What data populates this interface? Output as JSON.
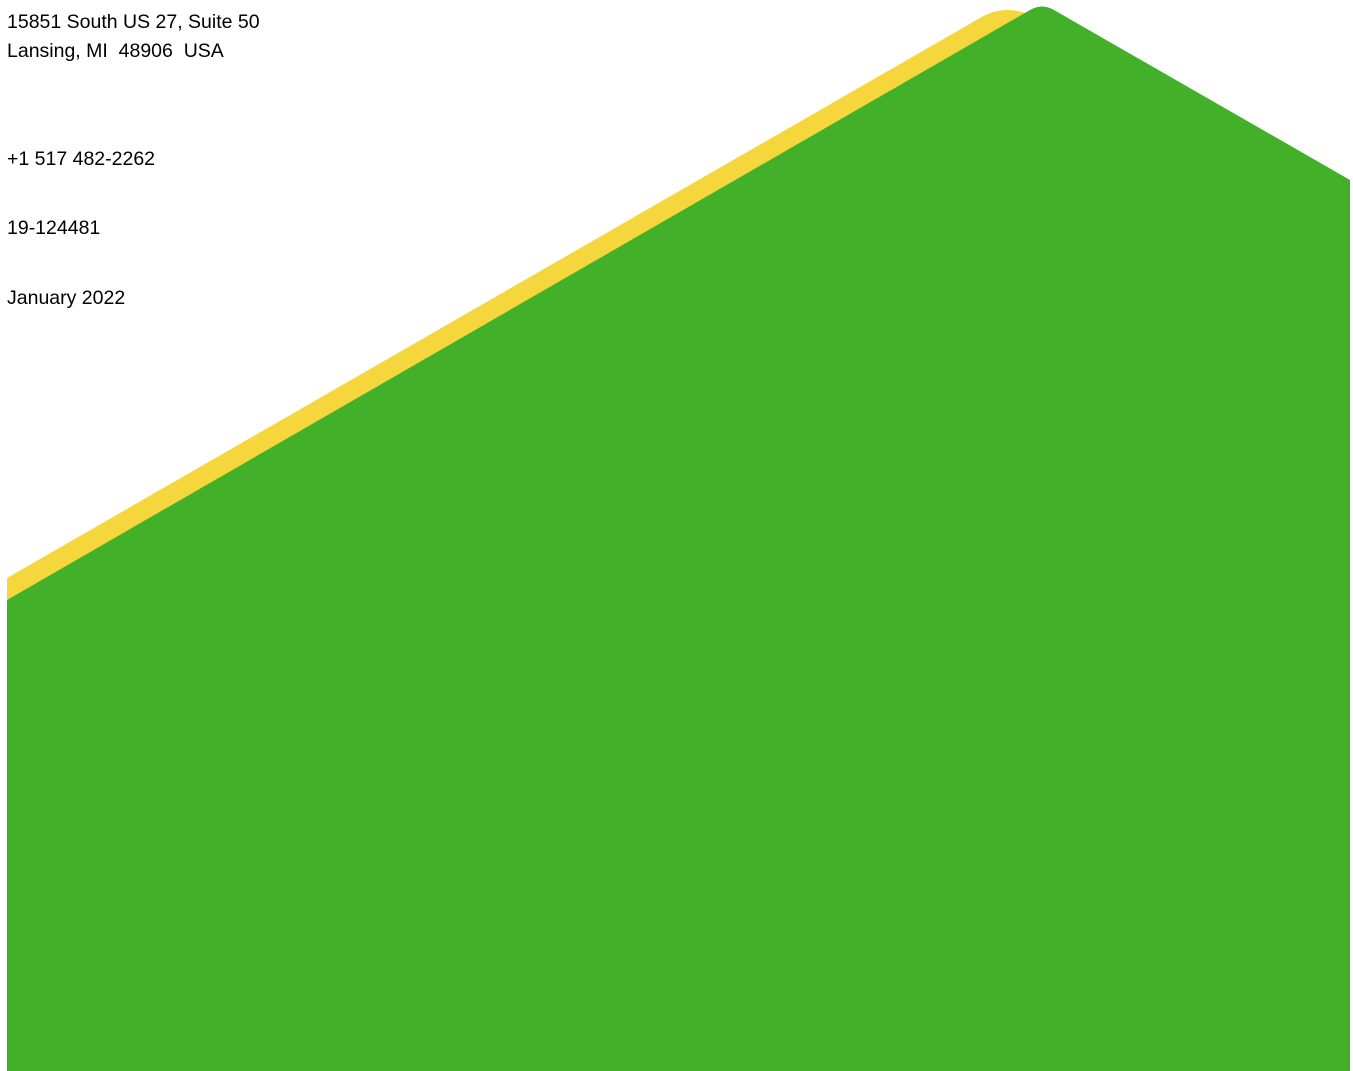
{
  "contact": {
    "address_line_1": "15851 South US 27, Suite 50",
    "address_line_2": "Lansing, MI  48906  USA",
    "phone": "+1 517 482-2262",
    "reference_number": "19-124481",
    "date": "January 2022"
  },
  "colors": {
    "accent_yellow": "#F5D63D",
    "brand_green": "#43B02A",
    "background": "#FFFFFF"
  }
}
